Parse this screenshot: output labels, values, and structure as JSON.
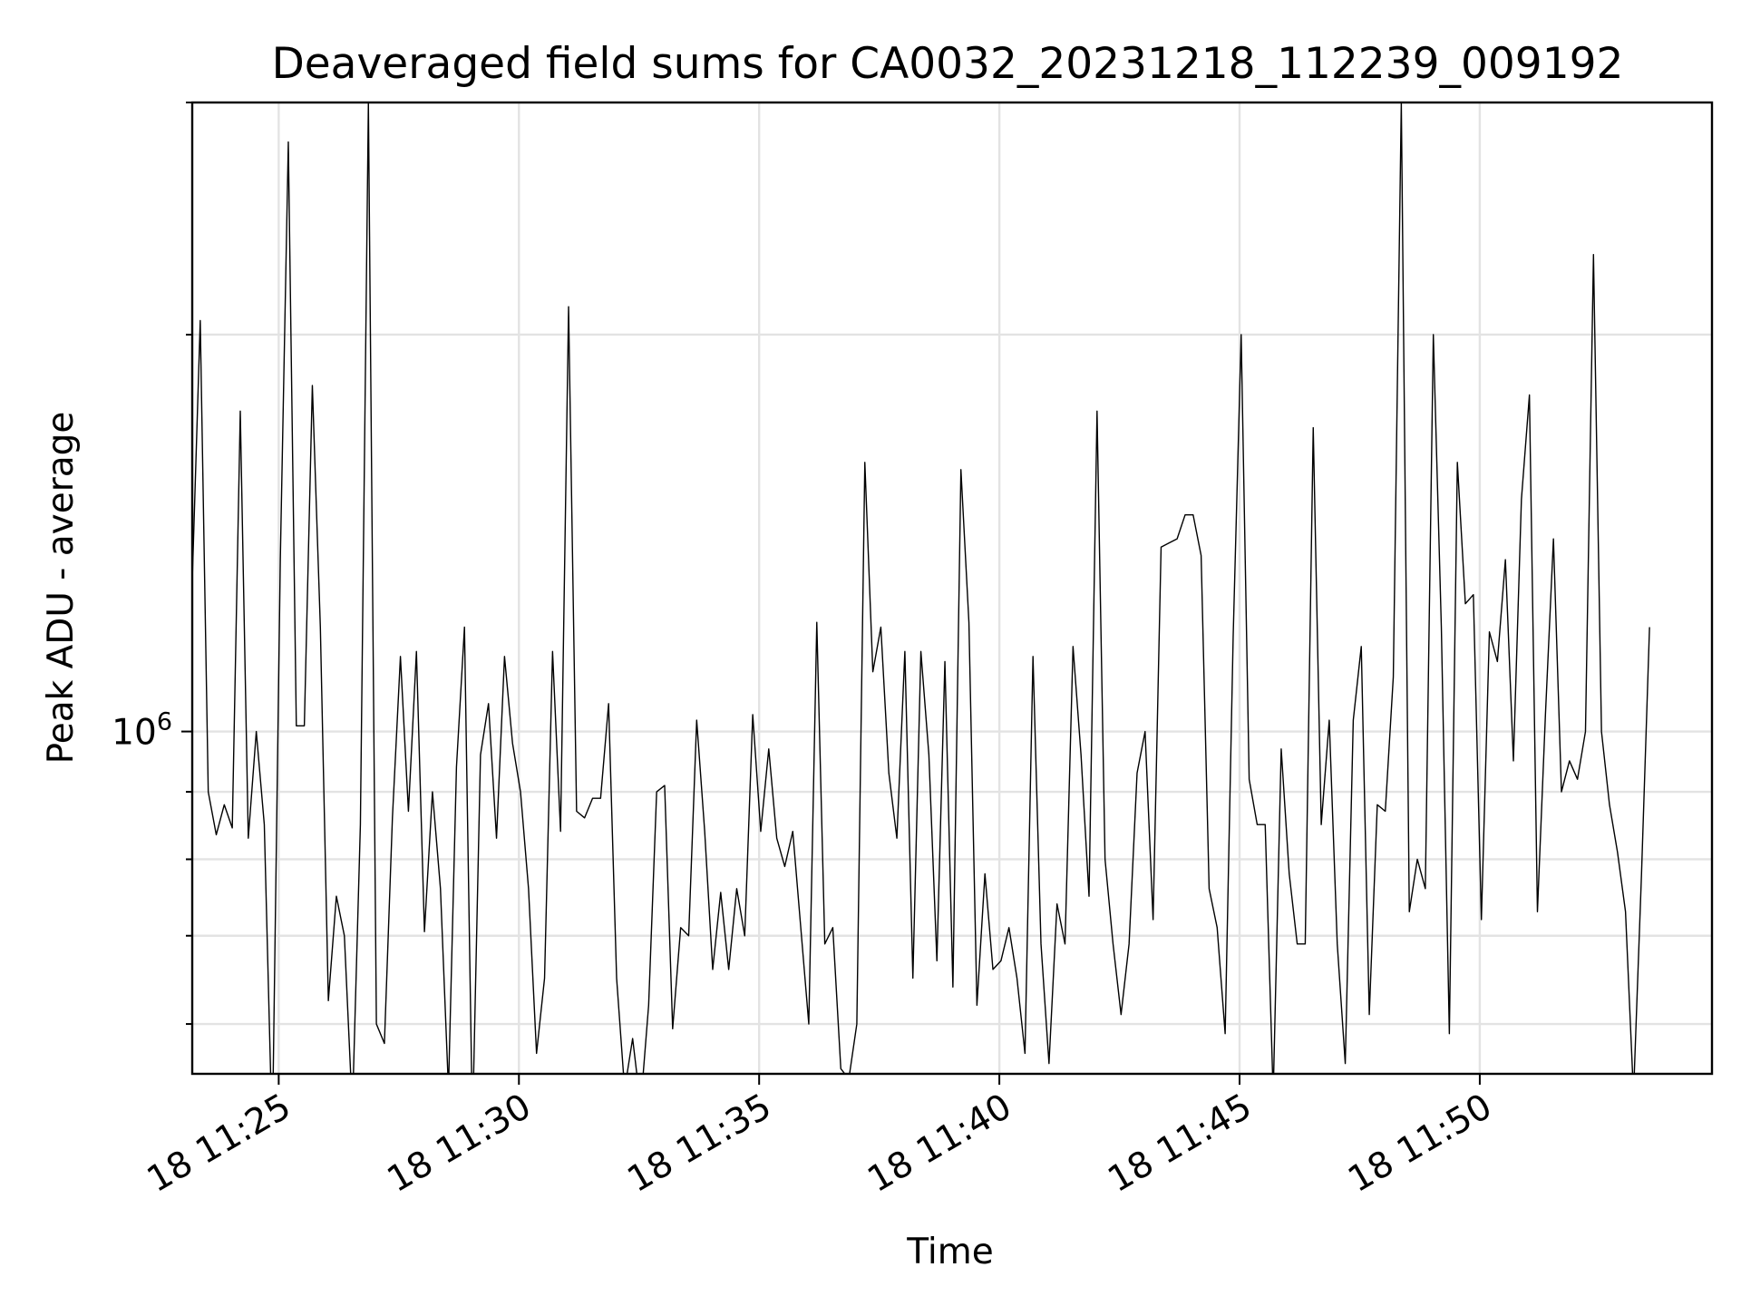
{
  "chart_data": {
    "type": "line",
    "title": "Deaveraged field sums for CA0032_20231218_112239_009192",
    "xlabel": "Time",
    "ylabel": "Peak ADU - average",
    "yscale": "log",
    "grid": true,
    "colors": {
      "series": "#000000",
      "grid": "#e3e3e3",
      "frame": "#000000"
    },
    "x_start": "2023-12-18T11:23:12",
    "x_step_seconds": 10,
    "xlim": [
      "2023-12-18T11:23:12",
      "2023-12-18T11:54:50"
    ],
    "ylim": [
      550000,
      3000000
    ],
    "x_ticks": [
      {
        "time": "2023-12-18T11:25:00",
        "label": "18 11:25"
      },
      {
        "time": "2023-12-18T11:30:00",
        "label": "18 11:30"
      },
      {
        "time": "2023-12-18T11:35:00",
        "label": "18 11:35"
      },
      {
        "time": "2023-12-18T11:40:00",
        "label": "18 11:40"
      },
      {
        "time": "2023-12-18T11:45:00",
        "label": "18 11:45"
      },
      {
        "time": "2023-12-18T11:50:00",
        "label": "18 11:50"
      }
    ],
    "y_major_ticks": [
      {
        "value": 1000000,
        "base": "10",
        "exp": "6"
      }
    ],
    "y_minor_ticks": [
      600000,
      700000,
      800000,
      900000,
      2000000,
      3000000
    ],
    "series": [
      {
        "values": [
          1300000,
          2050000,
          900000,
          835000,
          880000,
          845000,
          1750000,
          830000,
          1000000,
          850000,
          490000,
          1350000,
          2800000,
          1010000,
          1010000,
          1830000,
          1200000,
          625000,
          750000,
          700000,
          515000,
          850000,
          3000000,
          600000,
          580000,
          860000,
          1140000,
          870000,
          1150000,
          705000,
          900000,
          760000,
          535000,
          940000,
          1200000,
          500000,
          960000,
          1050000,
          830000,
          1140000,
          980000,
          900000,
          760000,
          570000,
          650000,
          1150000,
          840000,
          2100000,
          870000,
          860000,
          890000,
          890000,
          1050000,
          650000,
          535000,
          585000,
          520000,
          620000,
          900000,
          910000,
          595000,
          710000,
          700000,
          1020000,
          840000,
          660000,
          755000,
          660000,
          760000,
          700000,
          1030000,
          840000,
          970000,
          830000,
          790000,
          840000,
          710000,
          600000,
          1210000,
          690000,
          710000,
          555000,
          545000,
          600000,
          1600000,
          1110000,
          1200000,
          930000,
          830000,
          1150000,
          650000,
          1150000,
          960000,
          670000,
          1130000,
          640000,
          1580000,
          1210000,
          620000,
          780000,
          660000,
          670000,
          710000,
          650000,
          570000,
          1140000,
          690000,
          560000,
          740000,
          690000,
          1160000,
          960000,
          750000,
          1750000,
          800000,
          690000,
          610000,
          690000,
          930000,
          1000000,
          720000,
          1380000,
          1390000,
          1400000,
          1460000,
          1460000,
          1360000,
          760000,
          710000,
          590000,
          1180000,
          2000000,
          920000,
          850000,
          850000,
          530000,
          970000,
          780000,
          690000,
          690000,
          1700000,
          850000,
          1020000,
          690000,
          560000,
          1020000,
          1160000,
          610000,
          880000,
          870000,
          1100000,
          3000000,
          730000,
          800000,
          760000,
          2000000,
          1200000,
          590000,
          1600000,
          1250000,
          1270000,
          720000,
          1190000,
          1130000,
          1350000,
          950000,
          1500000,
          1800000,
          730000,
          1030000,
          1400000,
          900000,
          950000,
          920000,
          1000000,
          2300000,
          1000000,
          880000,
          810000,
          730000,
          530000,
          780000,
          1200000
        ]
      }
    ]
  }
}
